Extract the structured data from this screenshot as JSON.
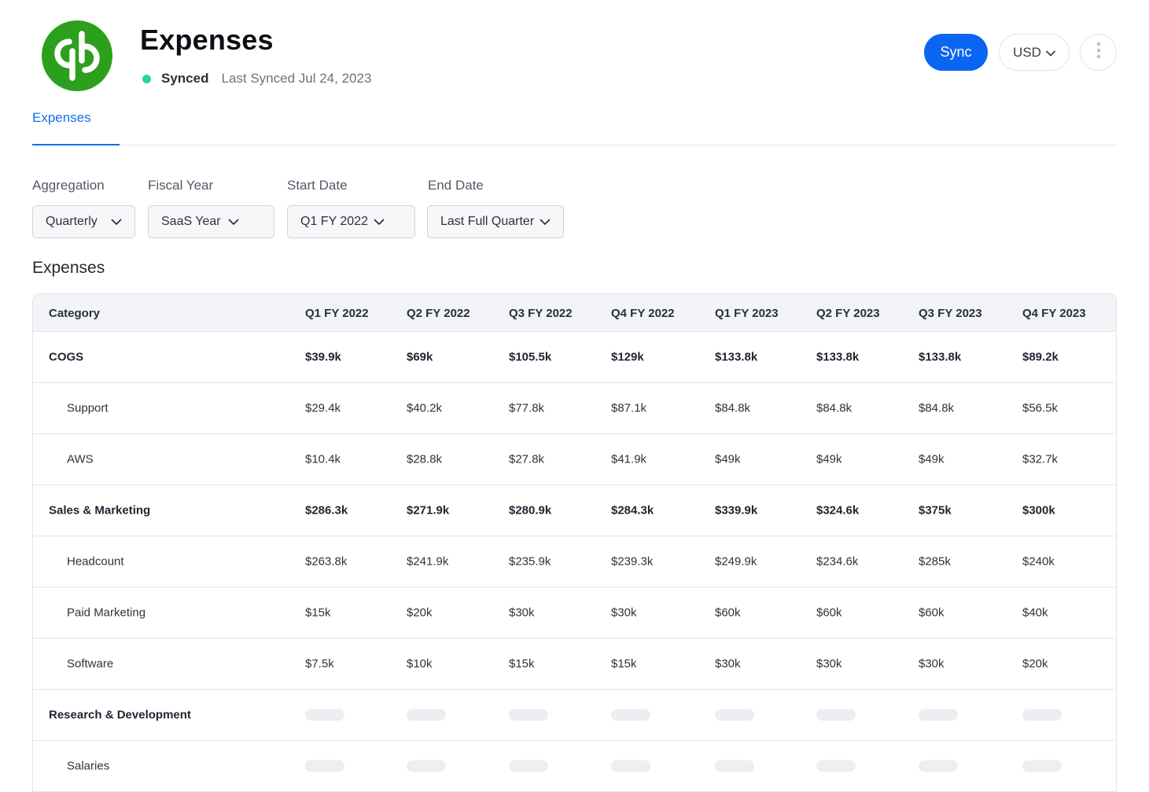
{
  "header": {
    "title": "Expenses",
    "status_label": "Synced",
    "status_color": "#22d3a6",
    "last_synced": "Last Synced Jul 24, 2023",
    "logo_icon": "quickbooks-logo",
    "sync_label": "Sync",
    "currency_label": "USD",
    "more_icon": "more-vertical-icon"
  },
  "tabs": [
    {
      "label": "Expenses",
      "active": true
    }
  ],
  "filters": {
    "aggregation": {
      "label": "Aggregation",
      "value": "Quarterly"
    },
    "fiscal_year": {
      "label": "Fiscal Year",
      "value": "SaaS Year"
    },
    "start_date": {
      "label": "Start Date",
      "value": "Q1 FY 2022"
    },
    "end_date": {
      "label": "End Date",
      "value": "Last Full Quarter"
    }
  },
  "section_title": "Expenses",
  "table": {
    "columns": [
      "Category",
      "Q1 FY 2022",
      "Q2 FY 2022",
      "Q3 FY 2022",
      "Q4 FY 2022",
      "Q1 FY 2023",
      "Q2 FY 2023",
      "Q3 FY 2023",
      "Q4 FY 2023"
    ],
    "rows": [
      {
        "label": "COGS",
        "bold": true,
        "values": [
          "$39.9k",
          "$69k",
          "$105.5k",
          "$129k",
          "$133.8k",
          "$133.8k",
          "$133.8k",
          "$89.2k"
        ]
      },
      {
        "label": "Support",
        "bold": false,
        "values": [
          "$29.4k",
          "$40.2k",
          "$77.8k",
          "$87.1k",
          "$84.8k",
          "$84.8k",
          "$84.8k",
          "$56.5k"
        ]
      },
      {
        "label": "AWS",
        "bold": false,
        "values": [
          "$10.4k",
          "$28.8k",
          "$27.8k",
          "$41.9k",
          "$49k",
          "$49k",
          "$49k",
          "$32.7k"
        ]
      },
      {
        "label": "Sales & Marketing",
        "bold": true,
        "values": [
          "$286.3k",
          "$271.9k",
          "$280.9k",
          "$284.3k",
          "$339.9k",
          "$324.6k",
          "$375k",
          "$300k"
        ]
      },
      {
        "label": "Headcount",
        "bold": false,
        "values": [
          "$263.8k",
          "$241.9k",
          "$235.9k",
          "$239.3k",
          "$249.9k",
          "$234.6k",
          "$285k",
          "$240k"
        ]
      },
      {
        "label": "Paid Marketing",
        "bold": false,
        "values": [
          "$15k",
          "$20k",
          "$30k",
          "$30k",
          "$60k",
          "$60k",
          "$60k",
          "$40k"
        ]
      },
      {
        "label": "Software",
        "bold": false,
        "values": [
          "$7.5k",
          "$10k",
          "$15k",
          "$15k",
          "$30k",
          "$30k",
          "$30k",
          "$20k"
        ]
      },
      {
        "label": "Research & Development",
        "bold": true,
        "loading": true,
        "values": []
      },
      {
        "label": "Salaries",
        "bold": false,
        "loading": true,
        "values": []
      }
    ]
  }
}
